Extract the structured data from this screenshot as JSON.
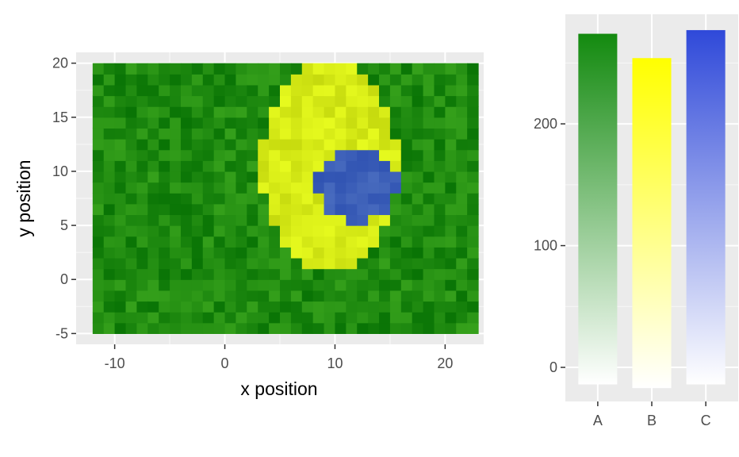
{
  "chart_data": [
    {
      "type": "heatmap",
      "title": "",
      "xlabel": "x position",
      "ylabel": "y position",
      "xlim": [
        -13.5,
        23.5
      ],
      "ylim": [
        -6,
        21
      ],
      "x_ticks": [
        -10,
        0,
        10,
        20
      ],
      "y_ticks": [
        -5,
        0,
        5,
        10,
        15,
        20
      ],
      "x_tick_labels": [
        "-10",
        "0",
        "10",
        "20"
      ],
      "y_tick_labels": [
        "-5",
        "0",
        "5",
        "10",
        "15",
        "20"
      ],
      "grid": true,
      "cells": {
        "x_range": [
          -12,
          23
        ],
        "y_range": [
          -5,
          20
        ],
        "cell_size": 1
      },
      "regions": [
        {
          "name": "",
          "shape": "background",
          "color": "#1f8a10"
        },
        {
          "name": "",
          "shape": "ellipse",
          "center": [
            9.5,
            10.5
          ],
          "radii": [
            6.2,
            9.8
          ],
          "color": "#d6ea16"
        },
        {
          "name": "",
          "shape": "ellipse",
          "center": [
            12,
            8.8
          ],
          "radii": [
            3.6,
            3.6
          ],
          "color": "#3c5fb8"
        }
      ]
    },
    {
      "type": "bar",
      "title": "",
      "xlabel": "",
      "ylabel": "",
      "categories": [
        "A",
        "B",
        "C"
      ],
      "values": [
        274,
        254,
        277
      ],
      "baselines": [
        -14,
        -17,
        -14
      ],
      "ylim": [
        -28,
        290
      ],
      "y_ticks": [
        0,
        100,
        200
      ],
      "y_tick_labels": [
        "0",
        "100",
        "200"
      ],
      "grid": true,
      "colors": [
        "#138a0f",
        "#ffff00",
        "#2f49d9"
      ],
      "fill": "vertical-gradient-to-white"
    }
  ]
}
